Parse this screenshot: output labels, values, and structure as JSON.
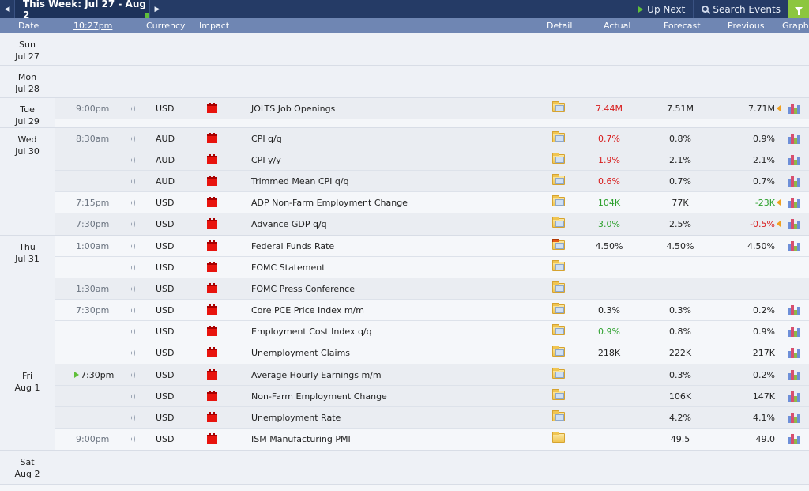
{
  "topbar": {
    "week_label": "This Week: Jul 27 - Aug 2",
    "up_next": "Up Next",
    "search": "Search Events"
  },
  "header": {
    "date": "Date",
    "time": "10:27pm",
    "currency": "Currency",
    "impact": "Impact",
    "detail": "Detail",
    "actual": "Actual",
    "forecast": "Forecast",
    "previous": "Previous",
    "graph": "Graph"
  },
  "days": [
    {
      "dow": "Sun",
      "date": "Jul 27",
      "rows": []
    },
    {
      "dow": "Mon",
      "date": "Jul 28",
      "rows": []
    },
    {
      "dow": "Tue",
      "date": "Jul 29",
      "rows": [
        {
          "time": "9:00pm",
          "currency": "USD",
          "event": "JOLTS Job Openings",
          "actual": "7.44M",
          "actual_color": "red",
          "forecast": "7.51M",
          "previous": "7.71M",
          "revised": true,
          "graph": true
        }
      ]
    },
    {
      "dow": "Wed",
      "date": "Jul 30",
      "rows": [
        {
          "time": "8:30am",
          "currency": "AUD",
          "event": "CPI q/q",
          "actual": "0.7%",
          "actual_color": "red",
          "forecast": "0.8%",
          "previous": "0.9%",
          "graph": true
        },
        {
          "time": "",
          "currency": "AUD",
          "event": "CPI y/y",
          "actual": "1.9%",
          "actual_color": "red",
          "forecast": "2.1%",
          "previous": "2.1%",
          "graph": true
        },
        {
          "time": "",
          "currency": "AUD",
          "event": "Trimmed Mean CPI q/q",
          "actual": "0.6%",
          "actual_color": "red",
          "forecast": "0.7%",
          "previous": "0.7%",
          "graph": true
        },
        {
          "time": "7:15pm",
          "currency": "USD",
          "event": "ADP Non-Farm Employment Change",
          "actual": "104K",
          "actual_color": "green",
          "forecast": "77K",
          "previous": "-23K",
          "previous_color": "green",
          "revised": true,
          "graph": true
        },
        {
          "time": "7:30pm",
          "currency": "USD",
          "event": "Advance GDP q/q",
          "actual": "3.0%",
          "actual_color": "green",
          "forecast": "2.5%",
          "previous": "-0.5%",
          "previous_color": "red",
          "revised": true,
          "graph": true
        }
      ]
    },
    {
      "dow": "Thu",
      "date": "Jul 31",
      "rows": [
        {
          "time": "1:00am",
          "currency": "USD",
          "event": "Federal Funds Rate",
          "actual": "4.50%",
          "actual_color": "",
          "forecast": "4.50%",
          "previous": "4.50%",
          "graph": true,
          "folder": "star"
        },
        {
          "time": "",
          "currency": "USD",
          "event": "FOMC Statement",
          "actual": "",
          "forecast": "",
          "previous": "",
          "graph": false
        },
        {
          "time": "1:30am",
          "currency": "USD",
          "event": "FOMC Press Conference",
          "actual": "",
          "forecast": "",
          "previous": "",
          "graph": false
        },
        {
          "time": "7:30pm",
          "currency": "USD",
          "event": "Core PCE Price Index m/m",
          "actual": "0.3%",
          "actual_color": "",
          "forecast": "0.3%",
          "previous": "0.2%",
          "graph": true
        },
        {
          "time": "",
          "currency": "USD",
          "event": "Employment Cost Index q/q",
          "actual": "0.9%",
          "actual_color": "green",
          "forecast": "0.8%",
          "previous": "0.9%",
          "graph": true
        },
        {
          "time": "",
          "currency": "USD",
          "event": "Unemployment Claims",
          "actual": "218K",
          "actual_color": "",
          "forecast": "222K",
          "previous": "217K",
          "graph": true
        }
      ]
    },
    {
      "dow": "Fri",
      "date": "Aug 1",
      "rows": [
        {
          "time": "7:30pm",
          "next": true,
          "currency": "USD",
          "event": "Average Hourly Earnings m/m",
          "actual": "",
          "forecast": "0.3%",
          "previous": "0.2%",
          "graph": true
        },
        {
          "time": "",
          "currency": "USD",
          "event": "Non-Farm Employment Change",
          "actual": "",
          "forecast": "106K",
          "previous": "147K",
          "graph": true
        },
        {
          "time": "",
          "currency": "USD",
          "event": "Unemployment Rate",
          "actual": "",
          "forecast": "4.2%",
          "previous": "4.1%",
          "graph": true
        },
        {
          "time": "9:00pm",
          "currency": "USD",
          "event": "ISM Manufacturing PMI",
          "actual": "",
          "forecast": "49.5",
          "previous": "49.0",
          "graph": true,
          "folder": "blank"
        }
      ]
    },
    {
      "dow": "Sat",
      "date": "Aug 2",
      "rows": []
    }
  ],
  "colors": {
    "topbar": "#253b66",
    "header": "#6f86b3",
    "impact_high": "#e8140e",
    "better": "#2ca02c",
    "worse": "#d81b1b"
  }
}
